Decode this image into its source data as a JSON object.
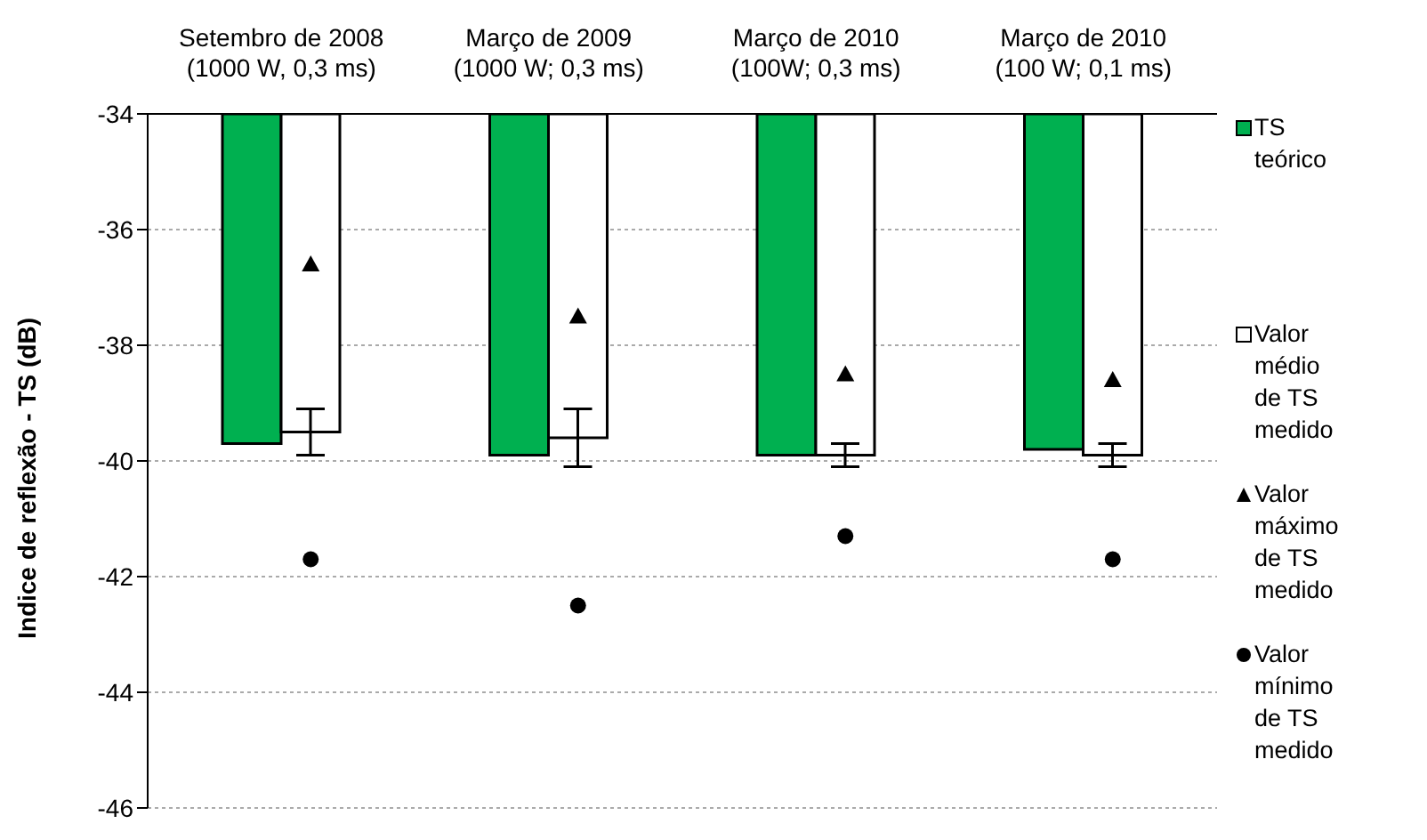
{
  "chart_data": {
    "type": "bar",
    "ylabel": "Indice de reflexão - TS (dB)",
    "categories": [
      "Setembro de 2008\n(1000 W, 0,3 ms)",
      "Março de 2009\n(1000 W; 0,3 ms)",
      "Março de 2010\n(100W; 0,3 ms)",
      "Março de 2010\n(100 W; 0,1 ms)"
    ],
    "series": [
      {
        "name": "TS teórico",
        "color": "#00b050",
        "values": [
          -39.7,
          -39.9,
          -39.9,
          -39.8
        ]
      },
      {
        "name": "Valor médio de TS medido",
        "color": "#ffffff",
        "values": [
          -39.5,
          -39.6,
          -39.9,
          -39.9
        ],
        "errors": [
          0.4,
          0.5,
          0.2,
          0.2
        ]
      },
      {
        "name": "Valor máximo de TS medido",
        "type": "scatter",
        "marker": "triangle",
        "color": "#000000",
        "x": [
          "Setembro de 2008\n(1000 W, 0,3 ms)",
          "Março de 2009\n(1000 W; 0,3 ms)",
          "Março de 2010\n(100W; 0,3 ms)",
          "Março de 2010\n(100 W; 0,1 ms)"
        ],
        "values": [
          -36.6,
          -37.5,
          -38.5,
          -38.6
        ]
      },
      {
        "name": "Valor mínimo de TS medido",
        "type": "scatter",
        "marker": "circle",
        "color": "#000000",
        "x": [
          "Setembro de 2008\n(1000 W, 0,3 ms)",
          "Março de 2009\n(1000 W; 0,3 ms)",
          "Março de 2010\n(100W; 0,3 ms)",
          "Março de 2010\n(100 W; 0,1 ms)"
        ],
        "values": [
          -41.7,
          -42.5,
          -41.3,
          -41.7
        ]
      }
    ],
    "ylim": [
      -46,
      -34
    ],
    "yticks": [
      -46,
      -44,
      -42,
      -40,
      -38,
      -36,
      -34
    ],
    "grid": "y",
    "legend": "right"
  }
}
